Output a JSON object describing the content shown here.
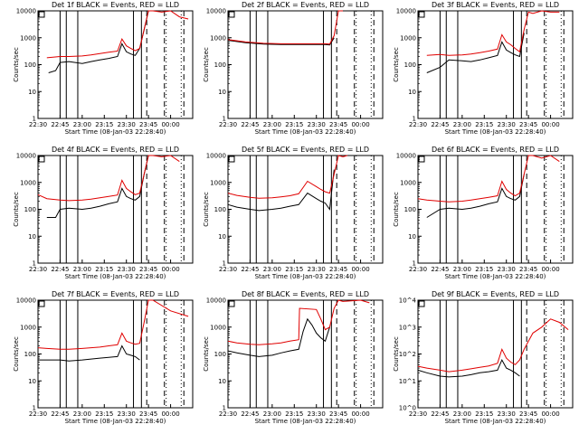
{
  "window": {
    "background": "#ffffff",
    "ink": "#000000"
  },
  "legend_colors": {
    "events": "#000000",
    "lld": "#e00000"
  },
  "x_ticks": [
    "22:30",
    "22:45",
    "23:00",
    "23:15",
    "23:30",
    "23:45",
    "00:00"
  ],
  "x_label": "Start Time (08-Jan-03 22:28:40)",
  "y_label": "Counts/sec",
  "y_ticks_linear": [
    "1",
    "10",
    "100",
    "1000",
    "10000"
  ],
  "y_ticks_exp": [
    "10^0",
    "10^1",
    "10^2",
    "10^3",
    "10^4"
  ],
  "solid_markers_hours": [
    22.75,
    22.82,
    22.95,
    23.58,
    23.67
  ],
  "dashed_markers_hours": [
    23.73,
    23.93,
    24.15
  ],
  "dotted_markers_hours": [
    23.95,
    24.12
  ],
  "chart_data": [
    {
      "id": "det1",
      "type": "line",
      "title": "Det 1f BLACK = Events, RED = LLD",
      "ylabel": "Counts/sec",
      "xlabel": "Start Time (08-Jan-03 22:28:40)",
      "ylim": [
        1,
        10000
      ],
      "yscale": "log",
      "series": [
        {
          "name": "Events",
          "color": "#000000",
          "x": [
            22.62,
            22.7,
            22.75,
            22.85,
            23.0,
            23.1,
            23.2,
            23.3,
            23.4,
            23.45,
            23.5,
            23.55,
            23.6,
            23.65,
            23.7,
            23.75,
            23.8
          ],
          "values": [
            50,
            60,
            120,
            130,
            110,
            130,
            150,
            170,
            200,
            600,
            300,
            250,
            220,
            400,
            2000,
            10000,
            10000
          ]
        },
        {
          "name": "LLD",
          "color": "#e00000",
          "x": [
            22.6,
            22.75,
            22.85,
            23.0,
            23.1,
            23.2,
            23.3,
            23.4,
            23.45,
            23.5,
            23.55,
            23.6,
            23.65,
            23.7,
            23.75,
            23.8,
            23.9,
            24.0,
            24.1,
            24.2
          ],
          "values": [
            180,
            200,
            200,
            210,
            230,
            260,
            290,
            320,
            900,
            500,
            400,
            330,
            400,
            2000,
            10000,
            10000,
            9000,
            10000,
            6000,
            5000
          ]
        }
      ]
    },
    {
      "id": "det2",
      "type": "line",
      "title": "Det 2f BLACK = Events, RED = LLD",
      "ylabel": "Counts/sec",
      "xlabel": "Start Time (08-Jan-03 22:28:40)",
      "ylim": [
        1,
        10000
      ],
      "yscale": "log",
      "series": [
        {
          "name": "Events",
          "color": "#000000",
          "x": [
            22.5,
            22.7,
            22.9,
            23.1,
            23.3,
            23.5,
            23.6,
            23.65,
            23.7
          ],
          "values": [
            800,
            650,
            580,
            560,
            560,
            560,
            560,
            540,
            1000
          ]
        },
        {
          "name": "LLD",
          "color": "#e00000",
          "x": [
            22.5,
            22.7,
            22.9,
            23.1,
            23.3,
            23.5,
            23.6,
            23.65,
            23.7,
            23.75,
            23.8
          ],
          "values": [
            850,
            700,
            620,
            600,
            600,
            600,
            600,
            580,
            1200,
            10000,
            10000
          ]
        }
      ]
    },
    {
      "id": "det3",
      "type": "line",
      "title": "Det 3f BLACK = Events, RED = LLD",
      "ylabel": "Counts/sec",
      "xlabel": "Start Time (08-Jan-03 22:28:40)",
      "ylim": [
        1,
        10000
      ],
      "yscale": "log",
      "series": [
        {
          "name": "Events",
          "color": "#000000",
          "x": [
            22.6,
            22.75,
            22.85,
            23.0,
            23.1,
            23.2,
            23.3,
            23.4,
            23.45,
            23.5,
            23.55,
            23.6,
            23.65,
            23.7
          ],
          "values": [
            50,
            80,
            150,
            140,
            130,
            150,
            180,
            220,
            700,
            350,
            280,
            230,
            200,
            1500
          ]
        },
        {
          "name": "LLD",
          "color": "#e00000",
          "x": [
            22.6,
            22.75,
            22.85,
            23.0,
            23.1,
            23.2,
            23.3,
            23.4,
            23.45,
            23.5,
            23.55,
            23.6,
            23.65,
            23.7,
            23.75,
            23.8,
            23.9,
            24.0,
            24.1
          ],
          "values": [
            220,
            240,
            220,
            230,
            250,
            280,
            320,
            380,
            1300,
            700,
            550,
            400,
            300,
            2000,
            9000,
            8000,
            10000,
            9000,
            9000
          ]
        }
      ]
    },
    {
      "id": "det4",
      "type": "line",
      "title": "Det 4f BLACK = Events, RED = LLD",
      "ylabel": "Counts/sec",
      "xlabel": "Start Time (08-Jan-03 22:28:40)",
      "ylim": [
        1,
        10000
      ],
      "yscale": "log",
      "series": [
        {
          "name": "Events",
          "color": "#000000",
          "x": [
            22.6,
            22.7,
            22.75,
            22.85,
            23.0,
            23.1,
            23.2,
            23.3,
            23.4,
            23.45,
            23.5,
            23.55,
            23.6,
            23.65,
            23.7,
            23.75
          ],
          "values": [
            50,
            50,
            100,
            110,
            100,
            110,
            130,
            160,
            190,
            600,
            300,
            250,
            220,
            300,
            2000,
            10000
          ]
        },
        {
          "name": "LLD",
          "color": "#e00000",
          "x": [
            22.5,
            22.6,
            22.75,
            22.85,
            23.0,
            23.1,
            23.2,
            23.3,
            23.4,
            23.45,
            23.5,
            23.55,
            23.6,
            23.65,
            23.7,
            23.75,
            23.8,
            23.9,
            24.0,
            24.1
          ],
          "values": [
            350,
            250,
            220,
            210,
            220,
            240,
            270,
            300,
            340,
            1200,
            600,
            450,
            350,
            400,
            2000,
            10000,
            10000,
            9000,
            10000,
            6000
          ]
        }
      ]
    },
    {
      "id": "det5",
      "type": "line",
      "title": "Det 5f BLACK = Events, RED = LLD",
      "ylabel": "Counts/sec",
      "xlabel": "Start Time (08-Jan-03 22:28:40)",
      "ylim": [
        1,
        10000
      ],
      "yscale": "log",
      "series": [
        {
          "name": "Events",
          "color": "#000000",
          "x": [
            22.5,
            22.6,
            22.75,
            22.85,
            23.0,
            23.1,
            23.2,
            23.3,
            23.4,
            23.5,
            23.55,
            23.6,
            23.65,
            23.7
          ],
          "values": [
            150,
            120,
            100,
            90,
            100,
            110,
            130,
            150,
            400,
            250,
            200,
            170,
            100,
            3000
          ]
        },
        {
          "name": "LLD",
          "color": "#e00000",
          "x": [
            22.5,
            22.6,
            22.75,
            22.85,
            23.0,
            23.1,
            23.2,
            23.3,
            23.4,
            23.5,
            23.55,
            23.6,
            23.65,
            23.7,
            23.75,
            23.8,
            23.85
          ],
          "values": [
            400,
            330,
            280,
            260,
            270,
            290,
            320,
            380,
            1100,
            700,
            550,
            450,
            400,
            2000,
            10000,
            9000,
            10000
          ]
        }
      ]
    },
    {
      "id": "det6",
      "type": "line",
      "title": "Det 6f BLACK = Events, RED = LLD",
      "ylabel": "Counts/sec",
      "xlabel": "Start Time (08-Jan-03 22:28:40)",
      "ylim": [
        1,
        10000
      ],
      "yscale": "log",
      "series": [
        {
          "name": "Events",
          "color": "#000000",
          "x": [
            22.6,
            22.75,
            22.85,
            23.0,
            23.1,
            23.2,
            23.3,
            23.4,
            23.45,
            23.5,
            23.55,
            23.6,
            23.65,
            23.7
          ],
          "values": [
            50,
            100,
            110,
            100,
            110,
            130,
            160,
            190,
            600,
            300,
            250,
            220,
            300,
            2000
          ]
        },
        {
          "name": "LLD",
          "color": "#e00000",
          "x": [
            22.5,
            22.6,
            22.75,
            22.85,
            23.0,
            23.1,
            23.2,
            23.3,
            23.4,
            23.45,
            23.5,
            23.55,
            23.6,
            23.65,
            23.7,
            23.75,
            23.8,
            23.9,
            24.0,
            24.1
          ],
          "values": [
            250,
            220,
            200,
            190,
            200,
            220,
            250,
            280,
            320,
            1100,
            550,
            400,
            320,
            400,
            2000,
            10000,
            10000,
            8000,
            10000,
            6000
          ]
        }
      ]
    },
    {
      "id": "det7",
      "type": "line",
      "title": "Det 7f BLACK = Events, RED = LLD",
      "ylabel": "Counts/sec",
      "xlabel": "Start Time (08-Jan-03 22:28:40)",
      "ylim": [
        1,
        10000
      ],
      "yscale": "log",
      "series": [
        {
          "name": "Events",
          "color": "#000000",
          "x": [
            22.5,
            22.6,
            22.75,
            22.85,
            23.0,
            23.1,
            23.2,
            23.3,
            23.4,
            23.45,
            23.5,
            23.55,
            23.6,
            23.65
          ],
          "values": [
            60,
            60,
            60,
            55,
            60,
            65,
            70,
            75,
            80,
            200,
            100,
            90,
            80,
            60
          ]
        },
        {
          "name": "LLD",
          "color": "#e00000",
          "x": [
            22.5,
            22.6,
            22.75,
            22.85,
            23.0,
            23.1,
            23.2,
            23.3,
            23.4,
            23.45,
            23.5,
            23.55,
            23.6,
            23.65,
            23.7,
            23.75,
            23.8,
            24.0,
            24.2
          ],
          "values": [
            170,
            160,
            150,
            150,
            160,
            170,
            180,
            200,
            220,
            600,
            300,
            260,
            230,
            250,
            1500,
            10000,
            10000,
            4000,
            2500
          ]
        }
      ]
    },
    {
      "id": "det8",
      "type": "line",
      "title": "Det 8f BLACK = Events, RED = LLD",
      "ylabel": "Counts/sec",
      "xlabel": "Start Time (08-Jan-03 22:28:40)",
      "ylim": [
        1,
        10000
      ],
      "yscale": "log",
      "series": [
        {
          "name": "Events",
          "color": "#000000",
          "x": [
            22.5,
            22.6,
            22.75,
            22.85,
            23.0,
            23.1,
            23.2,
            23.3,
            23.35,
            23.4,
            23.45,
            23.5,
            23.55,
            23.6,
            23.65
          ],
          "values": [
            130,
            110,
            90,
            80,
            90,
            110,
            130,
            150,
            700,
            2000,
            1200,
            600,
            400,
            300,
            1000
          ]
        },
        {
          "name": "LLD",
          "color": "#e00000",
          "x": [
            22.5,
            22.6,
            22.75,
            22.85,
            23.0,
            23.1,
            23.2,
            23.3,
            23.31,
            23.5,
            23.55,
            23.6,
            23.65,
            23.7,
            23.75,
            23.8,
            24.0,
            24.1
          ],
          "values": [
            300,
            260,
            230,
            220,
            240,
            260,
            300,
            340,
            5000,
            4500,
            2000,
            800,
            1000,
            5000,
            10000,
            9000,
            10000,
            8000
          ]
        }
      ]
    },
    {
      "id": "det9",
      "type": "line",
      "title": "Det 9f BLACK = Events, RED = LLD",
      "ylabel": "Counts/sec",
      "xlabel": "Start Time (08-Jan-03 22:28:40)",
      "ylim": [
        1,
        10000
      ],
      "yscale": "log",
      "series": [
        {
          "name": "Events",
          "color": "#000000",
          "x": [
            22.5,
            22.6,
            22.75,
            22.85,
            23.0,
            23.1,
            23.2,
            23.3,
            23.4,
            23.45,
            23.5,
            23.55,
            23.6,
            23.65
          ],
          "values": [
            25,
            20,
            15,
            14,
            15,
            17,
            20,
            22,
            25,
            60,
            30,
            25,
            20,
            15
          ]
        },
        {
          "name": "LLD",
          "color": "#e00000",
          "x": [
            22.5,
            22.6,
            22.75,
            22.85,
            23.0,
            23.1,
            23.2,
            23.3,
            23.4,
            23.45,
            23.5,
            23.55,
            23.6,
            23.65,
            23.7,
            23.8,
            23.9,
            24.0,
            24.1,
            24.2
          ],
          "values": [
            35,
            30,
            25,
            22,
            25,
            28,
            32,
            36,
            45,
            150,
            70,
            50,
            40,
            60,
            150,
            600,
            1000,
            2000,
            1500,
            800
          ]
        }
      ]
    }
  ]
}
